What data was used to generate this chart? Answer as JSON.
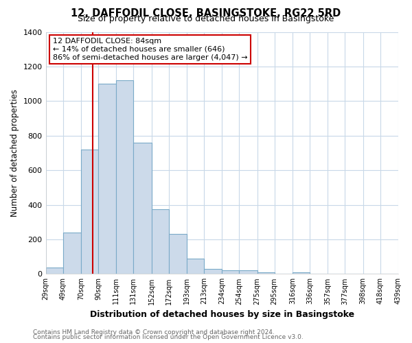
{
  "title": "12, DAFFODIL CLOSE, BASINGSTOKE, RG22 5RD",
  "subtitle": "Size of property relative to detached houses in Basingstoke",
  "xlabel": "Distribution of detached houses by size in Basingstoke",
  "ylabel": "Number of detached properties",
  "bar_edges": [
    29,
    49,
    70,
    90,
    111,
    131,
    152,
    172,
    193,
    213,
    234,
    254,
    275,
    295,
    316,
    336,
    357,
    377,
    398,
    418,
    439
  ],
  "bar_heights": [
    35,
    240,
    720,
    1100,
    1120,
    760,
    375,
    230,
    90,
    30,
    20,
    20,
    10,
    0,
    10,
    0,
    0,
    0,
    0,
    0
  ],
  "bar_color": "#ccdaea",
  "bar_edgecolor": "#7aaac8",
  "vline_x": 84,
  "vline_color": "#cc0000",
  "annotation_title": "12 DAFFODIL CLOSE: 84sqm",
  "annotation_line1": "← 14% of detached houses are smaller (646)",
  "annotation_line2": "86% of semi-detached houses are larger (4,047) →",
  "annotation_box_facecolor": "#ffffff",
  "annotation_box_edgecolor": "#cc0000",
  "ylim": [
    0,
    1400
  ],
  "tick_labels": [
    "29sqm",
    "49sqm",
    "70sqm",
    "90sqm",
    "111sqm",
    "131sqm",
    "152sqm",
    "172sqm",
    "193sqm",
    "213sqm",
    "234sqm",
    "254sqm",
    "275sqm",
    "295sqm",
    "316sqm",
    "336sqm",
    "357sqm",
    "377sqm",
    "398sqm",
    "418sqm",
    "439sqm"
  ],
  "footer_line1": "Contains HM Land Registry data © Crown copyright and database right 2024.",
  "footer_line2": "Contains public sector information licensed under the Open Government Licence v3.0.",
  "background_color": "#ffffff",
  "grid_color": "#c8d8e8"
}
